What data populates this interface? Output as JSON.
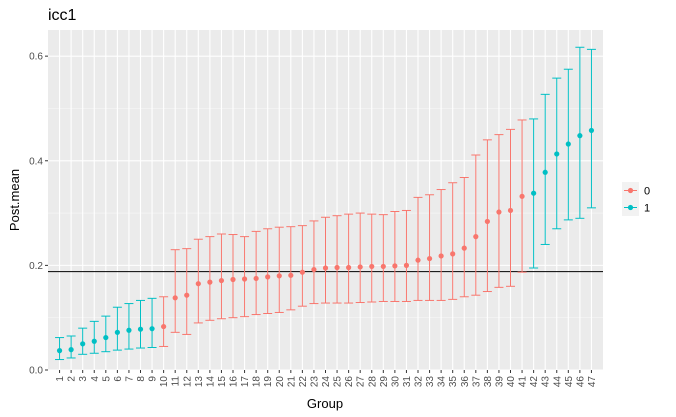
{
  "chart_data": {
    "type": "scatter",
    "title": "icc1",
    "xlabel": "Group",
    "ylabel": "Post.mean",
    "ylim": [
      0,
      0.65
    ],
    "yticks": [
      0.0,
      0.2,
      0.4,
      0.6
    ],
    "ytick_labels": [
      "0.0",
      "0.2",
      "0.4",
      "0.6"
    ],
    "hline": 0.188,
    "grid": true,
    "legend": {
      "placement": "right",
      "entries": [
        {
          "label": "0",
          "color": "#F8766D"
        },
        {
          "label": "1",
          "color": "#00BFC4"
        }
      ]
    },
    "categories": [
      "1",
      "2",
      "3",
      "4",
      "5",
      "6",
      "7",
      "8",
      "9",
      "10",
      "11",
      "12",
      "13",
      "14",
      "15",
      "16",
      "17",
      "18",
      "19",
      "20",
      "21",
      "22",
      "23",
      "24",
      "25",
      "26",
      "27",
      "28",
      "29",
      "30",
      "31",
      "32",
      "33",
      "34",
      "35",
      "36",
      "37",
      "38",
      "39",
      "40",
      "41",
      "42",
      "43",
      "44",
      "45",
      "46",
      "47"
    ],
    "groups": [
      1,
      1,
      1,
      1,
      1,
      1,
      1,
      1,
      1,
      0,
      0,
      0,
      0,
      0,
      0,
      0,
      0,
      0,
      0,
      0,
      0,
      0,
      0,
      0,
      0,
      0,
      0,
      0,
      0,
      0,
      0,
      0,
      0,
      0,
      0,
      0,
      0,
      0,
      0,
      0,
      0,
      1,
      1,
      1,
      1,
      1,
      1
    ],
    "means": [
      0.037,
      0.039,
      0.05,
      0.055,
      0.062,
      0.072,
      0.076,
      0.078,
      0.079,
      0.083,
      0.138,
      0.143,
      0.165,
      0.168,
      0.171,
      0.173,
      0.174,
      0.175,
      0.178,
      0.18,
      0.181,
      0.187,
      0.192,
      0.195,
      0.196,
      0.196,
      0.197,
      0.198,
      0.198,
      0.199,
      0.2,
      0.21,
      0.213,
      0.218,
      0.222,
      0.233,
      0.255,
      0.284,
      0.302,
      0.305,
      0.332,
      0.338,
      0.378,
      0.413,
      0.432,
      0.448,
      0.458
    ],
    "lower": [
      0.02,
      0.023,
      0.03,
      0.032,
      0.035,
      0.038,
      0.04,
      0.042,
      0.043,
      0.045,
      0.072,
      0.068,
      0.09,
      0.095,
      0.098,
      0.1,
      0.102,
      0.106,
      0.108,
      0.11,
      0.115,
      0.122,
      0.127,
      0.128,
      0.128,
      0.128,
      0.129,
      0.13,
      0.131,
      0.131,
      0.131,
      0.133,
      0.133,
      0.133,
      0.135,
      0.14,
      0.143,
      0.15,
      0.158,
      0.16,
      0.187,
      0.195,
      0.24,
      0.27,
      0.287,
      0.29,
      0.31
    ],
    "upper": [
      0.062,
      0.065,
      0.08,
      0.093,
      0.103,
      0.12,
      0.127,
      0.133,
      0.137,
      0.14,
      0.23,
      0.232,
      0.25,
      0.255,
      0.26,
      0.259,
      0.255,
      0.265,
      0.27,
      0.273,
      0.274,
      0.276,
      0.285,
      0.292,
      0.295,
      0.298,
      0.3,
      0.298,
      0.297,
      0.303,
      0.305,
      0.33,
      0.335,
      0.345,
      0.358,
      0.368,
      0.411,
      0.44,
      0.45,
      0.46,
      0.478,
      0.48,
      0.527,
      0.558,
      0.575,
      0.617,
      0.613
    ]
  }
}
